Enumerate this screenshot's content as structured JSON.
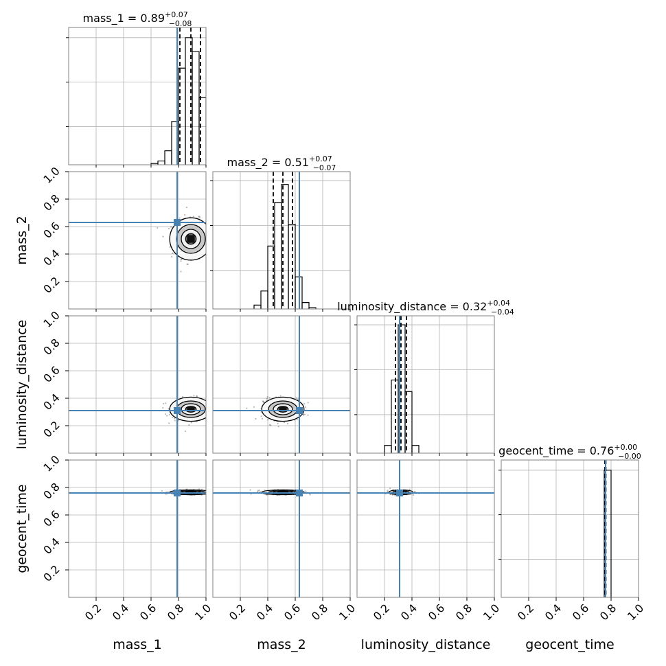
{
  "chart_data": {
    "type": "corner",
    "parameters": [
      "mass_1",
      "mass_2",
      "luminosity_distance",
      "geocent_time"
    ],
    "titles": [
      {
        "label": "mass_1 = 0.89",
        "sup": "+0.07",
        "sub": "−0.08"
      },
      {
        "label": "mass_2 = 0.51",
        "sup": "+0.07",
        "sub": "−0.07"
      },
      {
        "label": "luminosity_distance = 0.32",
        "sup": "+0.04",
        "sub": "−0.04"
      },
      {
        "label": "geocent_time = 0.76",
        "sup": "+0.00",
        "sub": "−0.00"
      }
    ],
    "axis_range": [
      0,
      1
    ],
    "tick_values": [
      0.2,
      0.4,
      0.6,
      0.8,
      1.0
    ],
    "tick_labels": [
      "0.2",
      "0.4",
      "0.6",
      "0.8",
      "1.0"
    ],
    "truths": [
      0.79,
      0.63,
      0.31,
      0.76
    ],
    "truth_color": "#4682b4",
    "grid": true,
    "quantiles": [
      [
        0.81,
        0.89,
        0.96
      ],
      [
        0.44,
        0.51,
        0.58
      ],
      [
        0.28,
        0.32,
        0.36
      ],
      [
        0.755,
        0.76,
        0.762
      ]
    ],
    "histograms": [
      {
        "bin_width": 0.05,
        "bins": [
          [
            0.6,
            0.01
          ],
          [
            0.65,
            0.03
          ],
          [
            0.7,
            0.11
          ],
          [
            0.75,
            0.34
          ],
          [
            0.8,
            0.76
          ],
          [
            0.85,
            1.0
          ],
          [
            0.9,
            0.89
          ],
          [
            0.95,
            0.53
          ]
        ]
      },
      {
        "bin_width": 0.05,
        "bins": [
          [
            0.3,
            0.03
          ],
          [
            0.35,
            0.14
          ],
          [
            0.4,
            0.49
          ],
          [
            0.45,
            0.83
          ],
          [
            0.5,
            0.97
          ],
          [
            0.55,
            0.66
          ],
          [
            0.6,
            0.25
          ],
          [
            0.65,
            0.05
          ],
          [
            0.7,
            0.01
          ]
        ]
      },
      {
        "bin_width": 0.05,
        "bins": [
          [
            0.2,
            0.06
          ],
          [
            0.25,
            0.57
          ],
          [
            0.3,
            1.0
          ],
          [
            0.35,
            0.48
          ],
          [
            0.4,
            0.06
          ]
        ]
      },
      {
        "bin_width": 0.05,
        "bins": [
          [
            0.75,
            1.0
          ]
        ]
      }
    ],
    "hist_max": [
      1.08,
      1.07,
      1.07,
      1.08
    ],
    "pair_blobs": [
      {
        "row": 1,
        "col": 0,
        "cx": 0.89,
        "cy": 0.51,
        "sx": 0.07,
        "sy": 0.07
      },
      {
        "row": 2,
        "col": 0,
        "cx": 0.89,
        "cy": 0.32,
        "sx": 0.07,
        "sy": 0.04
      },
      {
        "row": 2,
        "col": 1,
        "cx": 0.51,
        "cy": 0.32,
        "sx": 0.07,
        "sy": 0.04
      },
      {
        "row": 3,
        "col": 0,
        "cx": 0.89,
        "cy": 0.765,
        "sx": 0.07,
        "sy": 0.008
      },
      {
        "row": 3,
        "col": 1,
        "cx": 0.51,
        "cy": 0.765,
        "sx": 0.07,
        "sy": 0.008
      },
      {
        "row": 3,
        "col": 2,
        "cx": 0.32,
        "cy": 0.765,
        "sx": 0.04,
        "sy": 0.008
      }
    ]
  }
}
